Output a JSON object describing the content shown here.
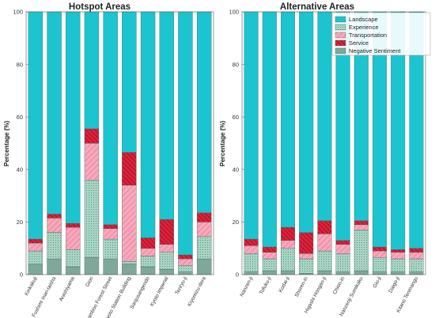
{
  "chart_data": [
    {
      "type": "bar",
      "stacked": true,
      "title": "Hotspot Areas",
      "ylabel": "Percentage (%)",
      "ylim": [
        0,
        100
      ],
      "yticks": [
        "0",
        "20",
        "40",
        "60",
        "80",
        "100"
      ],
      "categories": [
        "Kinkakuji",
        "Fushimi Inari-taisha",
        "Arashiyama",
        "Gion",
        "Bamboo Forest Street",
        "Kyoto Station Building",
        "Sanjusangendo",
        "Kyoto Imperial",
        "Tenryu-ji",
        "Kiyomizu-dera"
      ],
      "series": [
        {
          "name": "Negative Sentiment",
          "color": "#7fa89a",
          "values": [
            4,
            6,
            3,
            6.5,
            6,
            4,
            3,
            2,
            1,
            6
          ]
        },
        {
          "name": "Experience",
          "color": "#a8d4c4",
          "values": [
            5,
            10,
            6.5,
            29.5,
            7.5,
            1,
            4,
            6.5,
            2.5,
            8.5
          ]
        },
        {
          "name": "Transportation",
          "color": "#f7a8bc",
          "values": [
            3,
            5.5,
            8.5,
            14,
            4,
            29,
            3,
            3,
            2.5,
            5.5
          ]
        },
        {
          "name": "Service",
          "color": "#e0203a",
          "values": [
            1.5,
            1.5,
            1.5,
            5.5,
            1.5,
            12.5,
            4,
            9.5,
            1.5,
            3.5
          ]
        },
        {
          "name": "Landscape",
          "color": "#1cc4cf",
          "values": [
            86.5,
            77,
            80.5,
            44.5,
            81,
            53.5,
            86,
            79,
            92.5,
            76.5
          ]
        }
      ]
    },
    {
      "type": "bar",
      "stacked": true,
      "title": "Alternative Areas",
      "ylabel": "Percentage (%)",
      "ylim": [
        0,
        100
      ],
      "yticks": [
        "0",
        "20",
        "40",
        "60",
        "80",
        "100"
      ],
      "categories": [
        "Nanzen-ji",
        "Tofuku-ji",
        "Kodai-ji",
        "Shoren-in",
        "Higashi Hongan-ji",
        "Chion-in",
        "Nanzenji Sumikaku",
        "Gio-ji",
        "Daigo-ji",
        "Kitano Tenmangu"
      ],
      "series": [
        {
          "name": "Negative Sentiment",
          "color": "#7fa89a",
          "values": [
            1,
            1.5,
            1.5,
            0.5,
            1.5,
            1,
            1.5,
            1,
            1,
            1
          ]
        },
        {
          "name": "Experience",
          "color": "#a8d4c4",
          "values": [
            7,
            4.5,
            8.5,
            5.5,
            7.5,
            7,
            15.5,
            5.5,
            5,
            5
          ]
        },
        {
          "name": "Transportation",
          "color": "#f7a8bc",
          "values": [
            3,
            2.5,
            3,
            2,
            6.5,
            3.5,
            2,
            2.5,
            2.5,
            2.5
          ]
        },
        {
          "name": "Service",
          "color": "#e0203a",
          "values": [
            2.5,
            2,
            5,
            8,
            5,
            1.5,
            1.5,
            1.5,
            1,
            1.5
          ]
        },
        {
          "name": "Landscape",
          "color": "#1cc4cf",
          "values": [
            86.5,
            89.5,
            82,
            84,
            79.5,
            87,
            79.5,
            89.5,
            90.5,
            90
          ]
        }
      ]
    }
  ],
  "legend": [
    "Landscape",
    "Experience",
    "Transportation",
    "Service",
    "Negative Sentiment"
  ]
}
